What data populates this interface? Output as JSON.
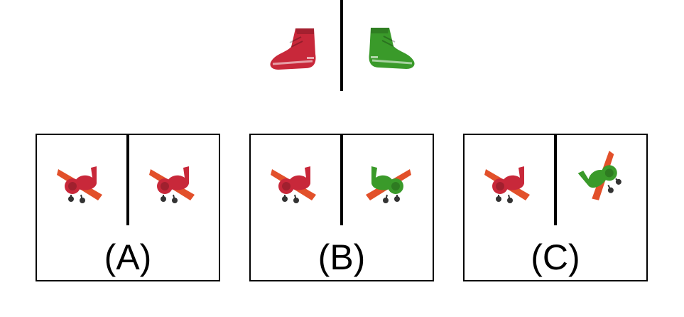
{
  "top": {
    "icons": [
      "red-sneaker-icon",
      "green-sneaker-icon"
    ],
    "colors": {
      "red": "#c8283a",
      "green": "#3a9a2a"
    }
  },
  "options": [
    {
      "label": "(A)",
      "left_icon": "red-airplane-icon",
      "right_icon": "red-airplane-icon"
    },
    {
      "label": "(B)",
      "left_icon": "red-airplane-icon",
      "right_icon": "green-airplane-icon"
    },
    {
      "label": "(C)",
      "left_icon": "red-airplane-icon",
      "right_icon": "green-airplane-rotated-icon"
    }
  ]
}
